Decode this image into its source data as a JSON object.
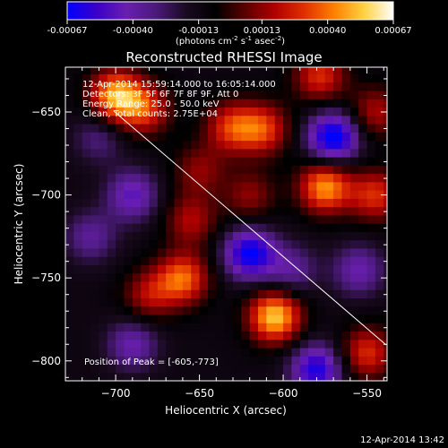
{
  "colorbar": {
    "ticks": [
      "-0.00067",
      "-0.00040",
      "-0.00013",
      "0.00013",
      "0.00040",
      "0.00067"
    ],
    "unit_label_parts": [
      "(photons cm",
      "-2",
      " s",
      "-1",
      " asec",
      "-2",
      ")"
    ]
  },
  "chart_data": {
    "type": "heatmap",
    "title": "Reconstructed RHESSI Image",
    "xlabel": "Heliocentric X (arcsec)",
    "ylabel": "Heliocentric Y (arcsec)",
    "xlim": [
      -730,
      -538
    ],
    "ylim": [
      -812,
      -623
    ],
    "xticks": [
      -700,
      -650,
      -600,
      -550
    ],
    "xtick_labels": [
      "−700",
      "−650",
      "−600",
      "−550"
    ],
    "yticks": [
      -650,
      -700,
      -750,
      -800
    ],
    "ytick_labels": [
      "−650",
      "−700",
      "−750",
      "−800"
    ],
    "value_range": [
      -0.00067,
      0.00067
    ],
    "colormap": [
      "#0000ff",
      "#3b00c8",
      "#6a1fb0",
      "#4a1a7a",
      "#1a0a20",
      "#000000",
      "#5a0000",
      "#b00000",
      "#e03000",
      "#ff8000",
      "#ffd040",
      "#ffffff"
    ],
    "annotations": [
      "12-Apr-2014 15:59:14.000 to 16:05:14.000",
      "Detectors: 3F 5F 6F 7F 8F 9F, Att 0",
      "Energy Range: 25.0 - 50.0 keV",
      "Clean,    Total counts: 2.75E+04"
    ],
    "peak_label": "Position of Peak = [-605,-773]",
    "peak": [
      -605,
      -773
    ],
    "blobs": [
      {
        "x": -700,
        "y": -640,
        "v": 0.00062
      },
      {
        "x": -683,
        "y": -648,
        "v": 0.0004
      },
      {
        "x": -612,
        "y": -660,
        "v": 0.00042
      },
      {
        "x": -631,
        "y": -659,
        "v": 0.0004
      },
      {
        "x": -578,
        "y": -628,
        "v": 0.0004
      },
      {
        "x": -655,
        "y": -715,
        "v": 0.0003
      },
      {
        "x": -650,
        "y": -685,
        "v": 0.00025
      },
      {
        "x": -660,
        "y": -750,
        "v": 0.0005
      },
      {
        "x": -680,
        "y": -760,
        "v": 0.0003
      },
      {
        "x": -620,
        "y": -700,
        "v": 0.00025
      },
      {
        "x": -605,
        "y": -773,
        "v": 0.00067
      },
      {
        "x": -575,
        "y": -695,
        "v": 0.00058
      },
      {
        "x": -545,
        "y": -700,
        "v": 0.0004
      },
      {
        "x": -545,
        "y": -650,
        "v": 0.0003
      },
      {
        "x": -550,
        "y": -795,
        "v": 0.0004
      },
      {
        "x": -620,
        "y": -735,
        "v": -0.00055
      },
      {
        "x": -570,
        "y": -665,
        "v": -0.0006
      },
      {
        "x": -690,
        "y": -700,
        "v": -0.00035
      },
      {
        "x": -715,
        "y": -725,
        "v": -0.00025
      },
      {
        "x": -690,
        "y": -790,
        "v": -0.0003
      },
      {
        "x": -580,
        "y": -805,
        "v": -0.0005
      },
      {
        "x": -710,
        "y": -665,
        "v": -0.0002
      },
      {
        "x": -595,
        "y": -745,
        "v": -0.00025
      },
      {
        "x": -555,
        "y": -745,
        "v": -0.0003
      }
    ]
  },
  "footer": {
    "timestamp": "12-Apr-2014 13:42"
  }
}
